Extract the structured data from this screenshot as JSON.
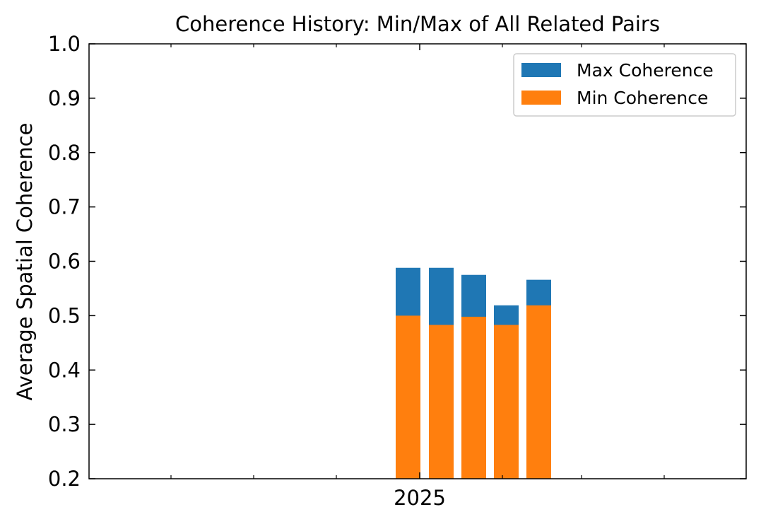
{
  "chart_data": {
    "type": "bar",
    "title": "Coherence History: Min/Max of All Related Pairs",
    "xlabel": "",
    "ylabel": "Average Spatial Coherence",
    "ylim": [
      0.2,
      1.0
    ],
    "yticks": [
      "0.2",
      "0.3",
      "0.4",
      "0.5",
      "0.6",
      "0.7",
      "0.8",
      "0.9",
      "1.0"
    ],
    "xtick_labels": [
      "2025"
    ],
    "grid": false,
    "legend_position": "top-right",
    "series": [
      {
        "name": "Max Coherence",
        "color": "#1f77b4",
        "values": [
          0.588,
          0.588,
          0.575,
          0.519,
          0.566
        ]
      },
      {
        "name": "Min Coherence",
        "color": "#ff7f0e",
        "values": [
          0.5,
          0.483,
          0.498,
          0.483,
          0.519
        ]
      }
    ]
  }
}
